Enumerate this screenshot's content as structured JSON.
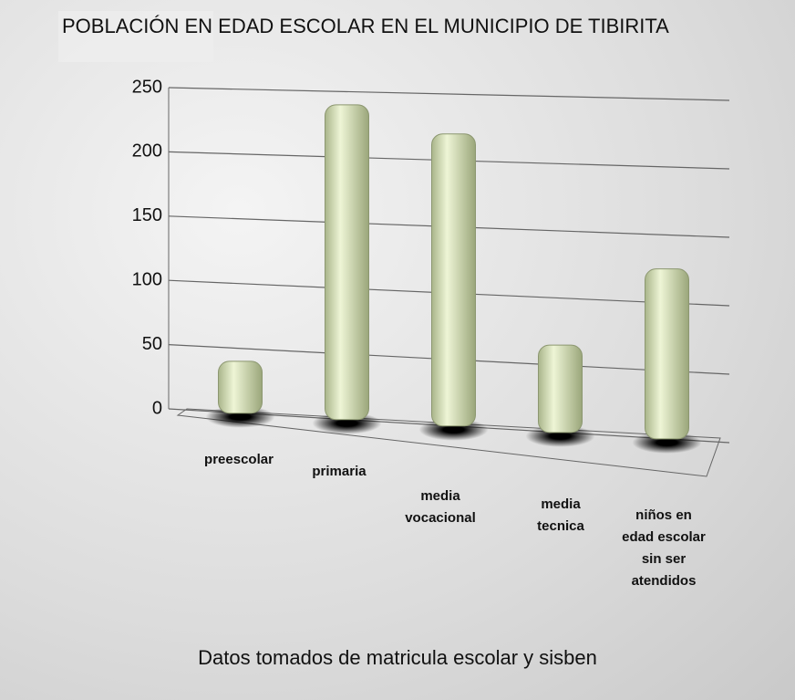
{
  "chart_data": {
    "type": "bar",
    "title": "POBLACIÓN EN EDAD ESCOLAR EN EL MUNICIPIO DE TIBIRITA",
    "note": "Datos tomados de matricula escolar y sisben",
    "categories": [
      "preescolar",
      "primaria",
      "media vocacional",
      "media tecnica",
      "niños en edad escolar sin ser atendidos"
    ],
    "values": [
      40,
      240,
      220,
      65,
      125
    ],
    "color": "#d9e6b8",
    "ylim": [
      0,
      250
    ],
    "yticks": [
      0,
      50,
      100,
      150,
      200,
      250
    ],
    "grid": true
  }
}
